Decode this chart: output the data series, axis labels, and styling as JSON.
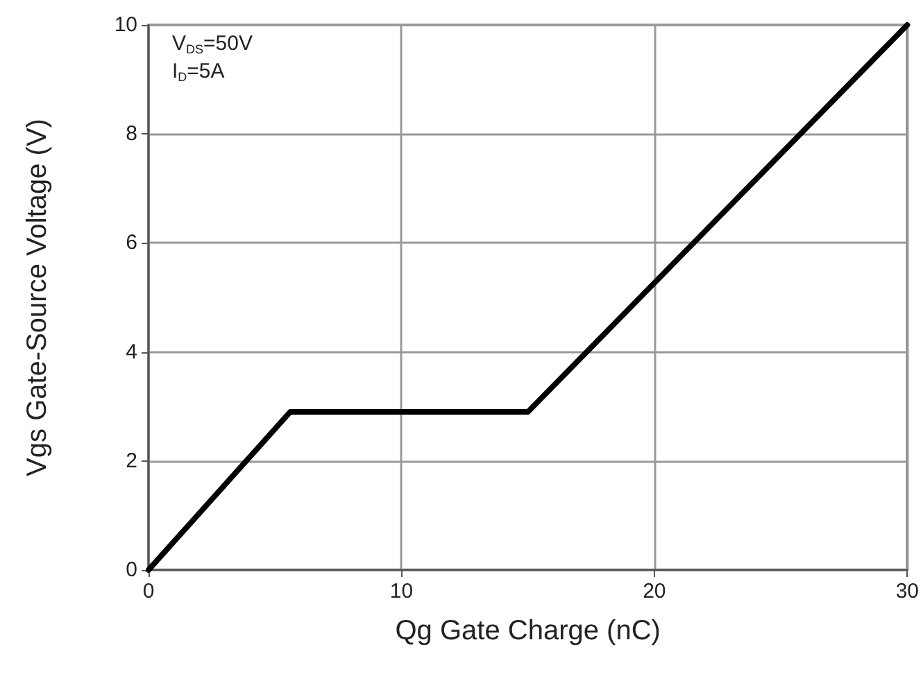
{
  "chart_data": {
    "type": "line",
    "xlabel": "Qg Gate Charge (nC)",
    "ylabel": "Vgs Gate-Source Voltage (V)",
    "annotations": [
      "V$_{DS}$=50V",
      "I$_{D}$=5A"
    ],
    "x": [
      0,
      5.6,
      15,
      30
    ],
    "series": [
      {
        "color": "#000000",
        "values": [
          0,
          2.9,
          2.9,
          10
        ]
      }
    ],
    "xlim": [
      0,
      30
    ],
    "xticks": [
      0,
      10,
      20,
      30
    ],
    "ylim": [
      0,
      10
    ],
    "yticks": [
      0,
      2,
      4,
      6,
      8,
      10
    ],
    "grid": true,
    "marker": "none",
    "line_style": "solid"
  }
}
